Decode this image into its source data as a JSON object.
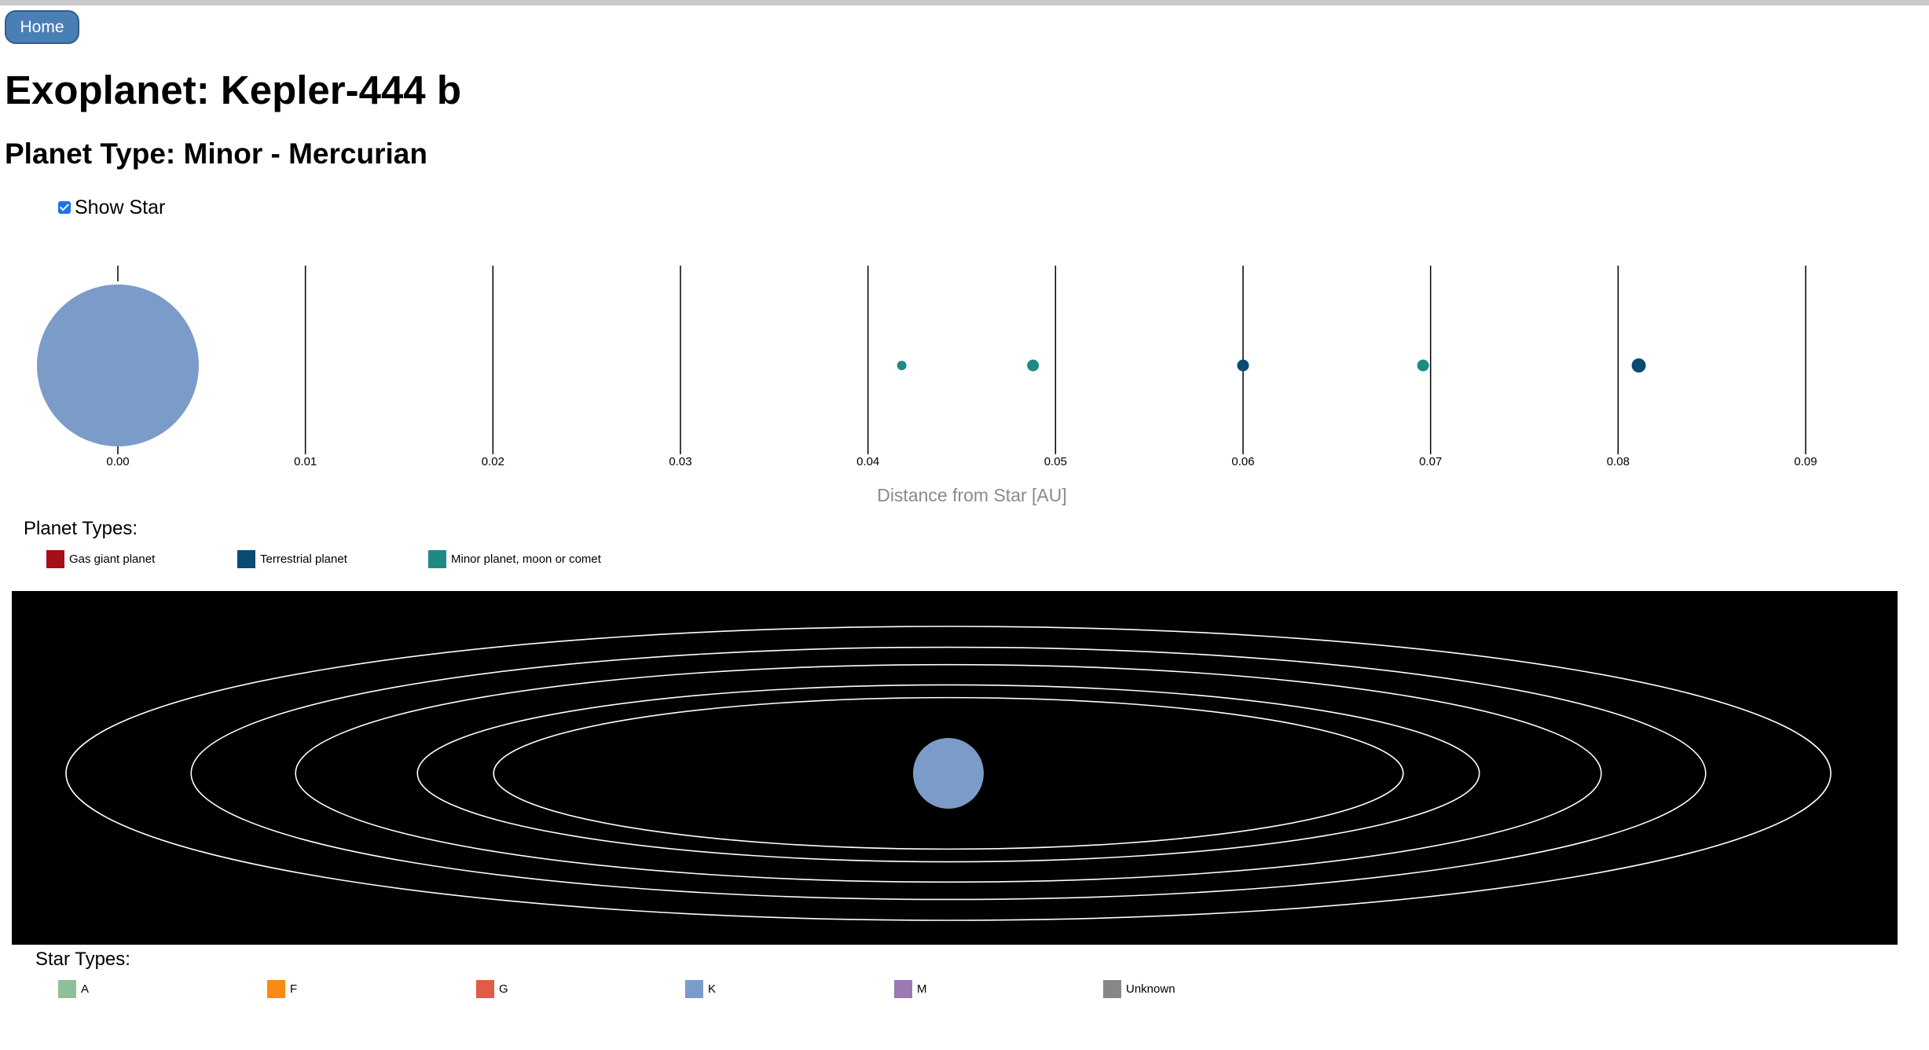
{
  "nav": {
    "home_label": "Home"
  },
  "page": {
    "title": "Exoplanet: Kepler-444 b",
    "planet_type": "Planet Type: Minor - Mercurian"
  },
  "controls": {
    "show_star_label": "Show Star",
    "show_star_checked": true
  },
  "colors": {
    "gas_giant": "#a50f15",
    "terrestrial": "#0b4a73",
    "minor": "#1f8a84",
    "star_K": "#7b9cc8",
    "button": "#4a7fb5"
  },
  "chart_data": {
    "type": "scatter",
    "xlabel": "Distance from Star [AU]",
    "xlim": [
      0,
      0.09
    ],
    "x_ticks": [
      "0.00",
      "0.01",
      "0.02",
      "0.03",
      "0.04",
      "0.05",
      "0.06",
      "0.07",
      "0.08",
      "0.09"
    ],
    "star": {
      "x": 0.0,
      "type": "K"
    },
    "points": [
      {
        "x": 0.0418,
        "type": "minor",
        "size": "small"
      },
      {
        "x": 0.0488,
        "type": "minor",
        "size": "medium"
      },
      {
        "x": 0.06,
        "type": "terrestrial",
        "size": "medium"
      },
      {
        "x": 0.0696,
        "type": "minor",
        "size": "medium"
      },
      {
        "x": 0.0811,
        "type": "terrestrial",
        "size": "large"
      }
    ]
  },
  "planet_legend": {
    "heading": "Planet Types:",
    "items": [
      {
        "label": "Gas giant planet",
        "color": "#a50f15"
      },
      {
        "label": "Terrestrial planet",
        "color": "#0b4a73"
      },
      {
        "label": "Minor planet, moon or comet",
        "color": "#1f8a84"
      }
    ]
  },
  "orbit_view": {
    "background": "#000000",
    "orbit_color": "#ffffff",
    "star_color": "#7b9cc8",
    "orbit_distances_au": [
      0.0418,
      0.0488,
      0.06,
      0.0696,
      0.0811
    ]
  },
  "star_legend": {
    "heading": "Star Types:",
    "items": [
      {
        "label": "A",
        "color": "#8fbf9a"
      },
      {
        "label": "F",
        "color": "#f98a16"
      },
      {
        "label": "G",
        "color": "#e05c45"
      },
      {
        "label": "K",
        "color": "#7b9cc8"
      },
      {
        "label": "M",
        "color": "#9b79b2"
      },
      {
        "label": "Unknown",
        "color": "#878787"
      }
    ]
  }
}
